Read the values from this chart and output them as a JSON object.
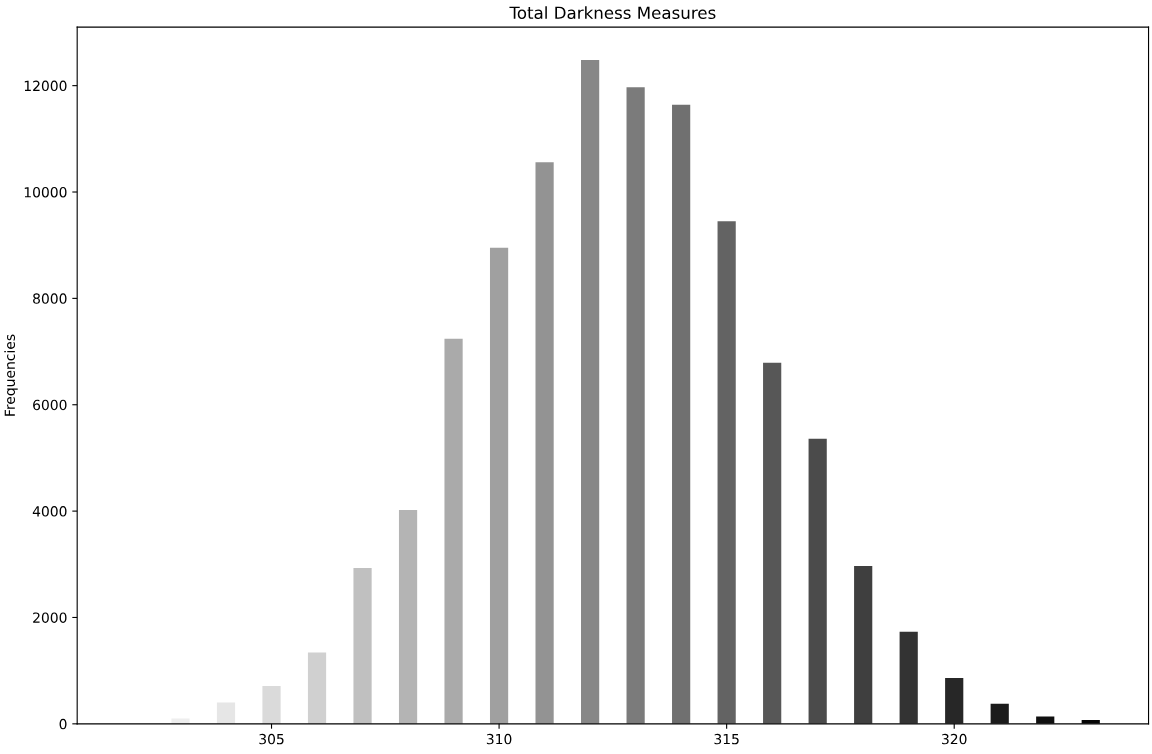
{
  "chart_data": {
    "type": "bar",
    "title": "Total Darkness Measures",
    "ylabel": "Frequencies",
    "x": [
      303,
      304,
      305,
      306,
      307,
      308,
      309,
      310,
      311,
      312,
      313,
      314,
      315,
      316,
      317,
      318,
      319,
      320,
      321,
      322,
      323
    ],
    "values": [
      100,
      400,
      710,
      1340,
      2930,
      4020,
      7240,
      8950,
      10560,
      12480,
      11970,
      11640,
      9450,
      6790,
      5360,
      2970,
      1730,
      860,
      380,
      140,
      70
    ],
    "colors": [
      "#eeeeee",
      "#e6e6e6",
      "#dadada",
      "#d0d0d0",
      "#c0c0c0",
      "#b4b4b4",
      "#aaaaaa",
      "#a0a0a0",
      "#939393",
      "#878787",
      "#7b7b7b",
      "#707070",
      "#636363",
      "#575757",
      "#4b4b4b",
      "#3f3f3f",
      "#333333",
      "#272727",
      "#1b1b1b",
      "#101010",
      "#050505"
    ],
    "xlim": [
      300.73,
      324.27
    ],
    "xticks": [
      305,
      310,
      315,
      320
    ],
    "ylim": [
      0,
      13100
    ],
    "yticks": [
      0,
      2000,
      4000,
      6000,
      8000,
      10000,
      12000
    ],
    "grid": false,
    "legend": false
  }
}
